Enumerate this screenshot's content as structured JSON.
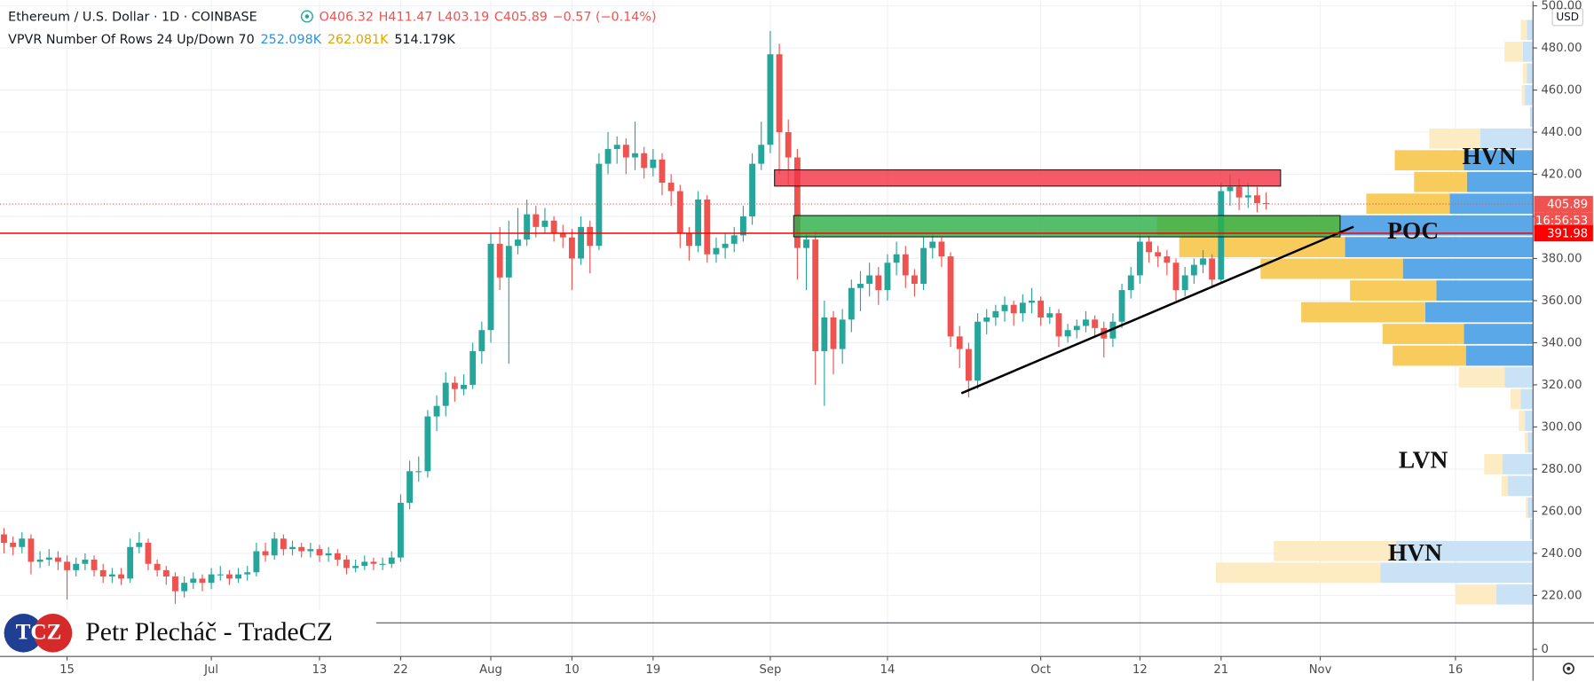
{
  "chart_data": {
    "type": "candlestick",
    "header": {
      "symbol": "Ethereum / U.S. Dollar · 1D · COINBASE",
      "open": "O406.32",
      "high": "H411.47",
      "low": "L403.19",
      "close": "C405.89",
      "change": "−0.57 (−0.14%)",
      "indicator": "VPVR Number Of Rows 24 Up/Down 70",
      "up_volume": "252.098K",
      "down_volume": "262.081K",
      "total_volume": "514.179K"
    },
    "currency": "USD",
    "up_color": "#26a69a",
    "down_color": "#ef5350",
    "grid": true,
    "xlim": [
      -0.44,
      169.6
    ],
    "xticks": [
      {
        "value": 7,
        "label": "15"
      },
      {
        "value": 23,
        "label": "Jul"
      },
      {
        "value": 35,
        "label": "13"
      },
      {
        "value": 44,
        "label": "22"
      },
      {
        "value": 54,
        "label": "Aug"
      },
      {
        "value": 63,
        "label": "10"
      },
      {
        "value": 72,
        "label": "19"
      },
      {
        "value": 85,
        "label": "Sep"
      },
      {
        "value": 98,
        "label": "14"
      },
      {
        "value": 115,
        "label": "Oct"
      },
      {
        "value": 126,
        "label": "12"
      },
      {
        "value": 135,
        "label": "21"
      },
      {
        "value": 146,
        "label": "Nov"
      },
      {
        "value": 161,
        "label": "16"
      }
    ],
    "ylim": [
      206.96,
      502.19
    ],
    "yticks": [
      {
        "value": 220,
        "label": "220.00"
      },
      {
        "value": 240,
        "label": "240.00"
      },
      {
        "value": 260,
        "label": "260.00"
      },
      {
        "value": 280,
        "label": "280.00"
      },
      {
        "value": 300,
        "label": "300.00"
      },
      {
        "value": 320,
        "label": "320.00"
      },
      {
        "value": 340,
        "label": "340.00"
      },
      {
        "value": 360,
        "label": "360.00"
      },
      {
        "value": 380,
        "label": "380.00"
      },
      {
        "value": 400,
        "label": "400.00"
      },
      {
        "value": 420,
        "label": "420.00"
      },
      {
        "value": 440,
        "label": "440.00"
      },
      {
        "value": 460,
        "label": "460.00"
      },
      {
        "value": 480,
        "label": "480.00"
      },
      {
        "value": 500,
        "label": "500.00"
      }
    ],
    "lower_pane_yticks": [
      0
    ],
    "ohlc": [
      [
        249,
        252,
        240,
        245
      ],
      [
        245,
        248,
        239,
        243
      ],
      [
        243,
        250,
        240,
        247
      ],
      [
        247,
        249,
        230,
        236
      ],
      [
        236,
        241,
        233,
        237
      ],
      [
        237,
        242,
        234,
        238
      ],
      [
        238,
        241,
        232,
        236
      ],
      [
        236,
        239,
        218,
        232
      ],
      [
        232,
        238,
        229,
        235
      ],
      [
        235,
        240,
        232,
        237
      ],
      [
        237,
        239,
        229,
        232
      ],
      [
        232,
        235,
        226,
        229
      ],
      [
        229,
        233,
        226,
        230
      ],
      [
        230,
        233,
        225,
        228
      ],
      [
        228,
        247,
        226,
        243
      ],
      [
        243,
        250,
        240,
        245
      ],
      [
        245,
        247,
        232,
        235
      ],
      [
        235,
        237,
        229,
        232
      ],
      [
        232,
        234,
        225,
        229
      ],
      [
        229,
        231,
        216,
        222
      ],
      [
        222,
        229,
        219,
        226
      ],
      [
        226,
        231,
        223,
        228
      ],
      [
        228,
        230,
        222,
        226
      ],
      [
        226,
        233,
        223,
        230
      ],
      [
        230,
        234,
        227,
        230
      ],
      [
        230,
        232,
        225,
        228
      ],
      [
        228,
        233,
        226,
        230
      ],
      [
        230,
        234,
        227,
        231
      ],
      [
        231,
        245,
        229,
        241
      ],
      [
        241,
        245,
        236,
        239
      ],
      [
        239,
        250,
        237,
        247
      ],
      [
        247,
        249,
        239,
        242
      ],
      [
        242,
        246,
        239,
        243
      ],
      [
        243,
        245,
        238,
        241
      ],
      [
        241,
        245,
        238,
        242
      ],
      [
        242,
        244,
        236,
        239
      ],
      [
        239,
        243,
        236,
        240
      ],
      [
        240,
        242,
        234,
        237
      ],
      [
        237,
        239,
        230,
        233
      ],
      [
        233,
        237,
        231,
        234
      ],
      [
        234,
        239,
        232,
        236
      ],
      [
        236,
        238,
        232,
        235
      ],
      [
        235,
        238,
        232,
        235
      ],
      [
        235,
        241,
        233,
        238
      ],
      [
        238,
        268,
        236,
        264
      ],
      [
        264,
        284,
        261,
        279
      ],
      [
        279,
        286,
        274,
        279
      ],
      [
        279,
        308,
        276,
        305
      ],
      [
        305,
        315,
        298,
        310
      ],
      [
        310,
        326,
        305,
        321
      ],
      [
        321,
        324,
        312,
        318
      ],
      [
        318,
        325,
        315,
        320
      ],
      [
        320,
        340,
        318,
        336
      ],
      [
        336,
        350,
        330,
        346
      ],
      [
        346,
        392,
        340,
        387
      ],
      [
        387,
        395,
        365,
        371
      ],
      [
        371,
        398,
        330,
        386
      ],
      [
        386,
        404,
        382,
        389
      ],
      [
        389,
        408,
        386,
        401
      ],
      [
        401,
        405,
        390,
        395
      ],
      [
        395,
        404,
        392,
        398
      ],
      [
        398,
        400,
        388,
        392
      ],
      [
        392,
        396,
        385,
        390
      ],
      [
        390,
        394,
        365,
        380
      ],
      [
        380,
        400,
        377,
        395
      ],
      [
        395,
        398,
        373,
        386
      ],
      [
        386,
        430,
        384,
        425
      ],
      [
        425,
        440,
        420,
        432
      ],
      [
        432,
        438,
        425,
        434
      ],
      [
        434,
        437,
        420,
        428
      ],
      [
        428,
        445,
        422,
        430
      ],
      [
        430,
        433,
        418,
        423
      ],
      [
        423,
        432,
        419,
        427
      ],
      [
        427,
        430,
        410,
        416
      ],
      [
        416,
        420,
        405,
        412
      ],
      [
        412,
        415,
        385,
        392
      ],
      [
        392,
        395,
        379,
        386
      ],
      [
        386,
        412,
        383,
        408
      ],
      [
        408,
        410,
        378,
        382
      ],
      [
        382,
        390,
        378,
        385
      ],
      [
        385,
        392,
        380,
        387
      ],
      [
        387,
        395,
        383,
        391
      ],
      [
        391,
        405,
        388,
        400
      ],
      [
        400,
        430,
        396,
        425
      ],
      [
        425,
        445,
        422,
        434
      ],
      [
        434,
        488,
        430,
        477
      ],
      [
        477,
        482,
        420,
        440
      ],
      [
        440,
        446,
        415,
        428
      ],
      [
        428,
        432,
        370,
        385
      ],
      [
        385,
        392,
        365,
        389
      ],
      [
        389,
        393,
        320,
        336
      ],
      [
        336,
        360,
        310,
        352
      ],
      [
        352,
        355,
        325,
        337
      ],
      [
        337,
        356,
        330,
        351
      ],
      [
        351,
        370,
        345,
        366
      ],
      [
        366,
        374,
        355,
        368
      ],
      [
        368,
        378,
        362,
        372
      ],
      [
        372,
        376,
        358,
        365
      ],
      [
        365,
        382,
        360,
        378
      ],
      [
        378,
        388,
        372,
        382
      ],
      [
        382,
        386,
        366,
        372
      ],
      [
        372,
        375,
        362,
        368
      ],
      [
        368,
        390,
        365,
        385
      ],
      [
        385,
        392,
        380,
        388
      ],
      [
        388,
        390,
        376,
        381
      ],
      [
        381,
        383,
        338,
        343
      ],
      [
        343,
        348,
        328,
        337
      ],
      [
        337,
        340,
        314,
        322
      ],
      [
        322,
        354,
        318,
        350
      ],
      [
        350,
        356,
        344,
        352
      ],
      [
        352,
        358,
        348,
        355
      ],
      [
        355,
        362,
        350,
        358
      ],
      [
        358,
        360,
        348,
        354
      ],
      [
        354,
        363,
        350,
        359
      ],
      [
        359,
        366,
        354,
        360
      ],
      [
        360,
        362,
        348,
        352
      ],
      [
        352,
        357,
        349,
        354
      ],
      [
        354,
        356,
        338,
        343
      ],
      [
        343,
        349,
        340,
        346
      ],
      [
        346,
        351,
        342,
        348
      ],
      [
        348,
        355,
        345,
        351
      ],
      [
        351,
        353,
        343,
        347
      ],
      [
        347,
        350,
        333,
        342
      ],
      [
        342,
        354,
        338,
        350
      ],
      [
        350,
        368,
        347,
        365
      ],
      [
        365,
        376,
        361,
        372
      ],
      [
        372,
        392,
        368,
        388
      ],
      [
        388,
        391,
        378,
        383
      ],
      [
        383,
        386,
        376,
        381
      ],
      [
        381,
        384,
        372,
        378
      ],
      [
        378,
        380,
        360,
        365
      ],
      [
        365,
        376,
        362,
        372
      ],
      [
        372,
        380,
        368,
        377
      ],
      [
        377,
        384,
        373,
        380
      ],
      [
        380,
        382,
        366,
        370
      ],
      [
        370,
        416,
        368,
        412
      ],
      [
        412,
        420,
        405,
        414
      ],
      [
        414,
        418,
        403,
        409
      ],
      [
        409,
        416,
        404,
        410
      ],
      [
        410,
        414,
        402,
        406.32
      ],
      [
        406.32,
        411.47,
        403.19,
        405.89
      ]
    ],
    "volume_profile": {
      "bins": [
        215.3,
        225.61,
        235.92,
        246.23,
        256.54,
        266.85,
        277.16,
        287.47,
        297.78,
        308.09,
        318.4,
        328.71,
        339.02,
        349.33,
        359.64,
        369.95,
        380.26,
        390.57,
        400.88,
        411.19,
        421.5,
        431.81,
        442.12,
        452.43,
        462.74,
        473.05,
        483.36,
        493.67
      ],
      "up": [
        36,
        150,
        135,
        3,
        5,
        25,
        30,
        5,
        8,
        12,
        28,
        66,
        68,
        106,
        95,
        128,
        185,
        190,
        82,
        65,
        68,
        52,
        3,
        8,
        6,
        10,
        6
      ],
      "down": [
        40,
        162,
        120,
        0,
        2,
        6,
        18,
        3,
        6,
        10,
        45,
        72,
        80,
        122,
        85,
        140,
        163,
        180,
        82,
        52,
        68,
        50,
        0,
        3,
        4,
        18,
        6
      ],
      "value_area": [
        328.71,
        431.81
      ],
      "up_color": "#5aa8e8",
      "down_color": "#f7cc5c",
      "up_color_outside": "#c9e2f6",
      "down_color_outside": "#fcebc3"
    },
    "price_lines": [
      {
        "value": 405.89,
        "color": "#ef5350",
        "dashed": true,
        "countdown": "16:56:53"
      },
      {
        "value": 391.98,
        "color": "#ff0000",
        "dashed": false
      }
    ],
    "zones": [
      {
        "x": [
          85.47,
          141.6
        ],
        "y": [
          414.4,
          422.1
        ],
        "color": "#f23645"
      },
      {
        "x": [
          87.6,
          148.2
        ],
        "y": [
          390.3,
          400.4
        ],
        "color": "#2eb04a"
      }
    ],
    "trend_line": {
      "x": [
        106.2,
        149.7
      ],
      "y": [
        316,
        395.1
      ],
      "color": "#000000"
    },
    "annotations": [
      "HVN",
      "POC",
      "LVN",
      "HVN"
    ]
  },
  "watermark": {
    "logo": "TCZ",
    "text": "Petr Plecháč - TradeCZ"
  }
}
